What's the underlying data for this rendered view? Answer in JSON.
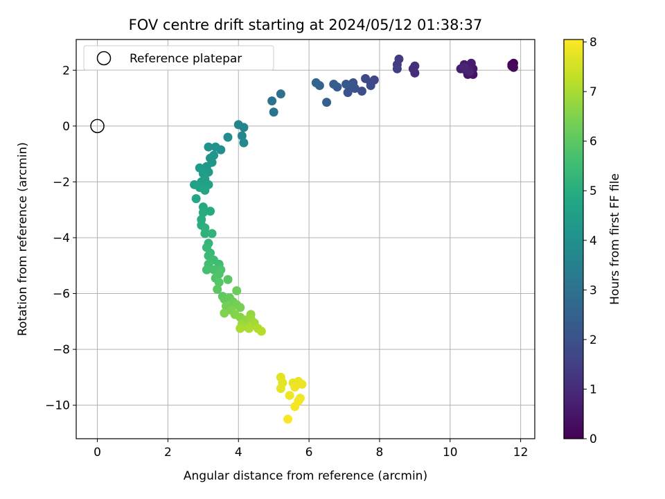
{
  "chart_data": {
    "type": "scatter",
    "title": "FOV centre drift starting at 2024/05/12 01:38:37",
    "xlabel": "Angular distance from reference (arcmin)",
    "ylabel": "Rotation from reference (arcmin)",
    "xlim": [
      -0.6,
      12.4
    ],
    "ylim": [
      -11.2,
      3.1
    ],
    "xticks": [
      "0",
      "2",
      "4",
      "6",
      "8",
      "10",
      "12"
    ],
    "yticks": [
      "2",
      "0",
      "−2",
      "−4",
      "−6",
      "−8",
      "−10"
    ],
    "grid": true,
    "legend": {
      "placement": "top-left",
      "label": "Reference platepar"
    },
    "reference_point": {
      "x": 0,
      "y": 0
    },
    "colorbar": {
      "label": "Hours from first FF file",
      "colormap": "viridis",
      "range": [
        0,
        8.05
      ],
      "ticks": [
        "0",
        "1",
        "2",
        "3",
        "4",
        "5",
        "6",
        "7",
        "8"
      ]
    },
    "points": [
      {
        "x": 11.8,
        "y": 2.25,
        "h": 0.05
      },
      {
        "x": 11.75,
        "y": 2.2,
        "h": 0.1
      },
      {
        "x": 11.75,
        "y": 2.15,
        "h": 0.15
      },
      {
        "x": 11.8,
        "y": 2.1,
        "h": 0.2
      },
      {
        "x": 10.65,
        "y": 1.85,
        "h": 0.4
      },
      {
        "x": 10.5,
        "y": 1.85,
        "h": 0.45
      },
      {
        "x": 10.65,
        "y": 2.05,
        "h": 0.5
      },
      {
        "x": 10.4,
        "y": 2.2,
        "h": 0.55
      },
      {
        "x": 10.6,
        "y": 2.25,
        "h": 0.6
      },
      {
        "x": 10.3,
        "y": 2.05,
        "h": 0.65
      },
      {
        "x": 10.45,
        "y": 2.0,
        "h": 0.7
      },
      {
        "x": 10.55,
        "y": 1.95,
        "h": 0.75
      },
      {
        "x": 10.4,
        "y": 2.1,
        "h": 0.8
      },
      {
        "x": 9.0,
        "y": 1.9,
        "h": 1.0
      },
      {
        "x": 8.95,
        "y": 2.05,
        "h": 1.05
      },
      {
        "x": 9.0,
        "y": 2.15,
        "h": 1.1
      },
      {
        "x": 8.55,
        "y": 2.4,
        "h": 1.35
      },
      {
        "x": 8.5,
        "y": 2.2,
        "h": 1.4
      },
      {
        "x": 8.5,
        "y": 2.05,
        "h": 1.45
      },
      {
        "x": 7.85,
        "y": 1.65,
        "h": 1.7
      },
      {
        "x": 7.75,
        "y": 1.55,
        "h": 1.75
      },
      {
        "x": 7.6,
        "y": 1.7,
        "h": 1.8
      },
      {
        "x": 7.75,
        "y": 1.45,
        "h": 1.85
      },
      {
        "x": 7.5,
        "y": 1.25,
        "h": 1.9
      },
      {
        "x": 7.25,
        "y": 1.55,
        "h": 2.0
      },
      {
        "x": 7.3,
        "y": 1.35,
        "h": 2.05
      },
      {
        "x": 7.1,
        "y": 1.2,
        "h": 2.1
      },
      {
        "x": 7.2,
        "y": 1.45,
        "h": 2.15
      },
      {
        "x": 7.05,
        "y": 1.5,
        "h": 2.2
      },
      {
        "x": 6.8,
        "y": 1.4,
        "h": 2.3
      },
      {
        "x": 6.7,
        "y": 1.5,
        "h": 2.35
      },
      {
        "x": 6.5,
        "y": 0.85,
        "h": 2.45
      },
      {
        "x": 6.3,
        "y": 1.45,
        "h": 2.55
      },
      {
        "x": 6.2,
        "y": 1.55,
        "h": 2.6
      },
      {
        "x": 5.2,
        "y": 1.15,
        "h": 2.95
      },
      {
        "x": 4.95,
        "y": 0.9,
        "h": 3.05
      },
      {
        "x": 5.0,
        "y": 0.5,
        "h": 3.1
      },
      {
        "x": 4.15,
        "y": -0.05,
        "h": 3.6
      },
      {
        "x": 4.0,
        "y": 0.05,
        "h": 3.65
      },
      {
        "x": 4.1,
        "y": -0.35,
        "h": 3.7
      },
      {
        "x": 4.15,
        "y": -0.6,
        "h": 3.75
      },
      {
        "x": 3.7,
        "y": -0.4,
        "h": 3.85
      },
      {
        "x": 3.5,
        "y": -0.85,
        "h": 4.0
      },
      {
        "x": 3.35,
        "y": -0.75,
        "h": 4.05
      },
      {
        "x": 3.15,
        "y": -0.75,
        "h": 4.1
      },
      {
        "x": 3.3,
        "y": -1.05,
        "h": 4.15
      },
      {
        "x": 3.2,
        "y": -1.15,
        "h": 4.2
      },
      {
        "x": 3.25,
        "y": -1.3,
        "h": 4.25
      },
      {
        "x": 3.1,
        "y": -1.45,
        "h": 4.3
      },
      {
        "x": 3.15,
        "y": -1.65,
        "h": 4.35
      },
      {
        "x": 2.9,
        "y": -1.5,
        "h": 4.4
      },
      {
        "x": 3.0,
        "y": -1.7,
        "h": 4.45
      },
      {
        "x": 3.05,
        "y": -1.9,
        "h": 4.5
      },
      {
        "x": 2.95,
        "y": -2.0,
        "h": 4.55
      },
      {
        "x": 3.15,
        "y": -2.1,
        "h": 4.6
      },
      {
        "x": 2.75,
        "y": -2.1,
        "h": 4.6
      },
      {
        "x": 2.9,
        "y": -2.2,
        "h": 4.65
      },
      {
        "x": 3.05,
        "y": -2.3,
        "h": 4.7
      },
      {
        "x": 2.8,
        "y": -2.6,
        "h": 4.75
      },
      {
        "x": 3.0,
        "y": -2.9,
        "h": 4.85
      },
      {
        "x": 3.2,
        "y": -3.05,
        "h": 4.9
      },
      {
        "x": 3.0,
        "y": -3.1,
        "h": 4.95
      },
      {
        "x": 2.95,
        "y": -3.35,
        "h": 5.0
      },
      {
        "x": 2.95,
        "y": -3.55,
        "h": 5.05
      },
      {
        "x": 3.05,
        "y": -3.65,
        "h": 5.1
      },
      {
        "x": 3.05,
        "y": -3.85,
        "h": 5.15
      },
      {
        "x": 3.25,
        "y": -3.85,
        "h": 5.2
      },
      {
        "x": 3.15,
        "y": -4.2,
        "h": 5.3
      },
      {
        "x": 3.1,
        "y": -4.35,
        "h": 5.35
      },
      {
        "x": 3.2,
        "y": -4.55,
        "h": 5.4
      },
      {
        "x": 3.15,
        "y": -4.65,
        "h": 5.45
      },
      {
        "x": 3.3,
        "y": -4.8,
        "h": 5.5
      },
      {
        "x": 3.45,
        "y": -4.95,
        "h": 5.55
      },
      {
        "x": 3.15,
        "y": -4.95,
        "h": 5.6
      },
      {
        "x": 3.1,
        "y": -5.15,
        "h": 5.65
      },
      {
        "x": 3.3,
        "y": -5.15,
        "h": 5.7
      },
      {
        "x": 3.5,
        "y": -5.15,
        "h": 5.75
      },
      {
        "x": 3.45,
        "y": -5.3,
        "h": 5.8
      },
      {
        "x": 3.35,
        "y": -5.45,
        "h": 5.85
      },
      {
        "x": 3.45,
        "y": -5.6,
        "h": 5.9
      },
      {
        "x": 3.7,
        "y": -5.5,
        "h": 5.95
      },
      {
        "x": 3.4,
        "y": -5.85,
        "h": 6.0
      },
      {
        "x": 3.55,
        "y": -6.1,
        "h": 6.05
      },
      {
        "x": 3.6,
        "y": -6.2,
        "h": 6.1
      },
      {
        "x": 3.75,
        "y": -6.15,
        "h": 6.15
      },
      {
        "x": 3.95,
        "y": -5.9,
        "h": 6.2
      },
      {
        "x": 3.85,
        "y": -6.3,
        "h": 6.25
      },
      {
        "x": 3.65,
        "y": -6.45,
        "h": 6.3
      },
      {
        "x": 3.95,
        "y": -6.4,
        "h": 6.35
      },
      {
        "x": 4.05,
        "y": -6.5,
        "h": 6.4
      },
      {
        "x": 3.8,
        "y": -6.6,
        "h": 6.45
      },
      {
        "x": 3.6,
        "y": -6.7,
        "h": 6.5
      },
      {
        "x": 3.9,
        "y": -6.75,
        "h": 6.55
      },
      {
        "x": 4.05,
        "y": -6.85,
        "h": 6.6
      },
      {
        "x": 4.2,
        "y": -6.95,
        "h": 6.7
      },
      {
        "x": 4.35,
        "y": -6.75,
        "h": 6.75
      },
      {
        "x": 4.35,
        "y": -6.9,
        "h": 6.8
      },
      {
        "x": 4.1,
        "y": -7.1,
        "h": 6.85
      },
      {
        "x": 4.25,
        "y": -7.2,
        "h": 6.9
      },
      {
        "x": 4.45,
        "y": -7.05,
        "h": 6.95
      },
      {
        "x": 4.05,
        "y": -7.25,
        "h": 7.0
      },
      {
        "x": 4.3,
        "y": -7.25,
        "h": 7.05
      },
      {
        "x": 4.55,
        "y": -7.25,
        "h": 7.1
      },
      {
        "x": 4.65,
        "y": -7.35,
        "h": 7.15
      },
      {
        "x": 5.2,
        "y": -9.0,
        "h": 7.7
      },
      {
        "x": 5.25,
        "y": -9.2,
        "h": 7.72
      },
      {
        "x": 5.2,
        "y": -9.4,
        "h": 7.75
      },
      {
        "x": 5.55,
        "y": -9.2,
        "h": 7.78
      },
      {
        "x": 5.7,
        "y": -9.15,
        "h": 7.8
      },
      {
        "x": 5.8,
        "y": -9.25,
        "h": 7.82
      },
      {
        "x": 5.6,
        "y": -9.35,
        "h": 7.85
      },
      {
        "x": 5.45,
        "y": -9.65,
        "h": 7.88
      },
      {
        "x": 5.75,
        "y": -9.75,
        "h": 7.9
      },
      {
        "x": 5.7,
        "y": -9.85,
        "h": 7.92
      },
      {
        "x": 5.6,
        "y": -10.05,
        "h": 7.95
      },
      {
        "x": 5.4,
        "y": -10.5,
        "h": 8.0
      }
    ]
  }
}
